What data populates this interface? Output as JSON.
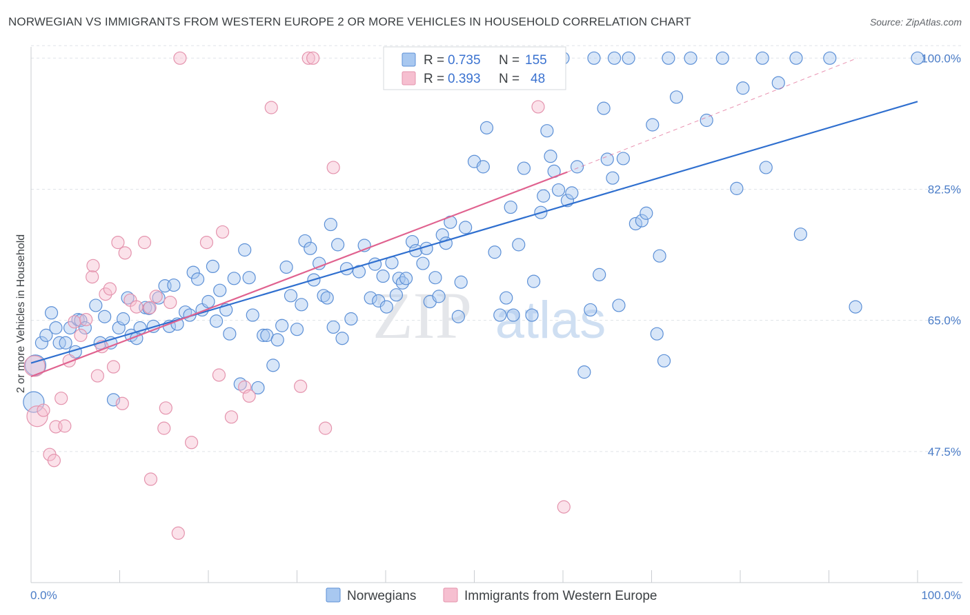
{
  "title": "NORWEGIAN VS IMMIGRANTS FROM WESTERN EUROPE 2 OR MORE VEHICLES IN HOUSEHOLD CORRELATION CHART",
  "source": "Source: ZipAtlas.com",
  "watermark": {
    "zip": "ZIP",
    "atlas": "atlas"
  },
  "colors": {
    "norwegians_fill": "#a8c8f0",
    "norwegians_stroke": "#5b8fd6",
    "norwegians_line": "#2f6fcf",
    "immigrants_fill": "#f6bfd0",
    "immigrants_stroke": "#e493ad",
    "immigrants_line": "#e0628f",
    "grid": "#dfe3e8",
    "tick_label": "#4a7cc7"
  },
  "legend": {
    "r_label": "R =",
    "n_label": "N =",
    "rows": [
      {
        "r": "0.735",
        "n": "155"
      },
      {
        "r": "0.393",
        "n": "48"
      }
    ]
  },
  "chart_data": {
    "type": "scatter",
    "xlabel": "",
    "ylabel": "2 or more Vehicles in Household",
    "xlim": [
      0,
      100
    ],
    "ylim": [
      30,
      101.5
    ],
    "x_tick_labels": [
      "0.0%",
      "100.0%"
    ],
    "y_ticks": [
      47.5,
      65.0,
      82.5,
      100.0
    ],
    "y_tick_labels": [
      "47.5%",
      "65.0%",
      "82.5%",
      "100.0%"
    ],
    "grid": true,
    "legend_position": "top-center",
    "series": [
      {
        "name": "Norwegians",
        "r": 0.735,
        "n": 155,
        "trend": {
          "x": [
            0,
            100
          ],
          "y": [
            59.3,
            94.2
          ]
        },
        "points": [
          [
            0.3,
            54.1
          ],
          [
            0.5,
            59.0
          ],
          [
            1.2,
            62.0
          ],
          [
            1.7,
            63.0
          ],
          [
            2.3,
            66.0
          ],
          [
            2.8,
            64.0
          ],
          [
            3.2,
            62.0
          ],
          [
            3.9,
            62.0
          ],
          [
            4.4,
            64.0
          ],
          [
            5.0,
            60.8
          ],
          [
            5.3,
            65.1
          ],
          [
            5.6,
            65.0
          ],
          [
            6.1,
            64.0
          ],
          [
            7.3,
            67.0
          ],
          [
            7.8,
            62.0
          ],
          [
            8.3,
            65.5
          ],
          [
            9.0,
            62.0
          ],
          [
            9.3,
            54.4
          ],
          [
            9.9,
            64.0
          ],
          [
            10.4,
            65.2
          ],
          [
            10.9,
            68.0
          ],
          [
            11.3,
            63.0
          ],
          [
            11.9,
            62.6
          ],
          [
            12.3,
            64.0
          ],
          [
            12.9,
            66.7
          ],
          [
            13.3,
            66.6
          ],
          [
            13.8,
            64.2
          ],
          [
            14.4,
            68.0
          ],
          [
            15.1,
            69.6
          ],
          [
            15.6,
            64.2
          ],
          [
            16.1,
            69.7
          ],
          [
            16.5,
            64.5
          ],
          [
            17.4,
            66.1
          ],
          [
            17.9,
            65.7
          ],
          [
            18.3,
            71.4
          ],
          [
            18.8,
            70.5
          ],
          [
            19.3,
            66.4
          ],
          [
            20.0,
            67.5
          ],
          [
            20.5,
            72.2
          ],
          [
            20.9,
            64.9
          ],
          [
            21.3,
            69.0
          ],
          [
            22.0,
            66.4
          ],
          [
            22.4,
            63.2
          ],
          [
            22.9,
            70.6
          ],
          [
            23.6,
            56.5
          ],
          [
            24.1,
            74.4
          ],
          [
            24.6,
            70.7
          ],
          [
            25.0,
            65.7
          ],
          [
            25.6,
            56.0
          ],
          [
            26.2,
            63.0
          ],
          [
            26.6,
            63.0
          ],
          [
            27.3,
            59.0
          ],
          [
            27.8,
            62.4
          ],
          [
            28.3,
            64.3
          ],
          [
            28.8,
            72.1
          ],
          [
            29.3,
            68.3
          ],
          [
            30.0,
            63.8
          ],
          [
            30.5,
            67.1
          ],
          [
            30.9,
            75.6
          ],
          [
            31.5,
            74.6
          ],
          [
            31.9,
            70.4
          ],
          [
            32.5,
            72.6
          ],
          [
            33.0,
            68.3
          ],
          [
            33.4,
            68.0
          ],
          [
            33.8,
            77.8
          ],
          [
            34.1,
            64.1
          ],
          [
            34.6,
            75.1
          ],
          [
            35.1,
            62.6
          ],
          [
            35.6,
            71.9
          ],
          [
            36.1,
            65.2
          ],
          [
            37.0,
            71.5
          ],
          [
            37.6,
            75.0
          ],
          [
            38.3,
            68.0
          ],
          [
            38.8,
            72.5
          ],
          [
            39.2,
            67.6
          ],
          [
            39.7,
            70.9
          ],
          [
            40.1,
            66.8
          ],
          [
            40.7,
            72.7
          ],
          [
            41.2,
            68.4
          ],
          [
            41.5,
            70.6
          ],
          [
            41.9,
            70.0
          ],
          [
            42.3,
            70.6
          ],
          [
            43.0,
            75.5
          ],
          [
            43.4,
            74.3
          ],
          [
            44.2,
            72.6
          ],
          [
            44.6,
            74.6
          ],
          [
            45.0,
            67.5
          ],
          [
            45.6,
            70.7
          ],
          [
            46.0,
            68.2
          ],
          [
            46.4,
            76.4
          ],
          [
            46.8,
            75.3
          ],
          [
            47.3,
            78.1
          ],
          [
            48.2,
            65.5
          ],
          [
            48.5,
            70.1
          ],
          [
            49.0,
            77.4
          ],
          [
            50.0,
            86.2
          ],
          [
            51.0,
            85.5
          ],
          [
            51.4,
            90.7
          ],
          [
            52.3,
            74.1
          ],
          [
            52.9,
            65.7
          ],
          [
            53.6,
            68.0
          ],
          [
            54.1,
            80.1
          ],
          [
            54.4,
            65.7
          ],
          [
            55.0,
            75.1
          ],
          [
            55.6,
            85.3
          ],
          [
            56.5,
            65.7
          ],
          [
            56.7,
            70.2
          ],
          [
            57.5,
            79.4
          ],
          [
            57.8,
            81.6
          ],
          [
            58.2,
            90.3
          ],
          [
            58.6,
            86.9
          ],
          [
            59.0,
            84.9
          ],
          [
            59.5,
            82.4
          ],
          [
            60.0,
            100.0
          ],
          [
            60.5,
            81.0
          ],
          [
            61.0,
            82.0
          ],
          [
            61.6,
            85.5
          ],
          [
            62.4,
            58.1
          ],
          [
            63.1,
            66.4
          ],
          [
            63.5,
            100.0
          ],
          [
            64.1,
            71.1
          ],
          [
            64.6,
            93.3
          ],
          [
            65.0,
            86.5
          ],
          [
            65.6,
            84.0
          ],
          [
            65.8,
            100.0
          ],
          [
            66.3,
            67.0
          ],
          [
            66.8,
            86.6
          ],
          [
            67.4,
            100.0
          ],
          [
            68.2,
            77.9
          ],
          [
            68.9,
            78.3
          ],
          [
            69.4,
            79.3
          ],
          [
            70.1,
            91.1
          ],
          [
            70.6,
            63.2
          ],
          [
            70.9,
            73.6
          ],
          [
            71.4,
            59.6
          ],
          [
            71.9,
            100.0
          ],
          [
            72.8,
            94.8
          ],
          [
            74.4,
            100.0
          ],
          [
            76.2,
            91.7
          ],
          [
            78.0,
            100.0
          ],
          [
            79.6,
            82.6
          ],
          [
            80.3,
            96.0
          ],
          [
            82.5,
            100.0
          ],
          [
            82.9,
            85.4
          ],
          [
            84.3,
            96.7
          ],
          [
            86.3,
            100.0
          ],
          [
            86.8,
            76.5
          ],
          [
            90.1,
            100.0
          ],
          [
            93.0,
            66.8
          ],
          [
            100.0,
            100.0
          ]
        ]
      },
      {
        "name": "Immigrants from Western Europe",
        "r": 0.393,
        "n": 48,
        "trend": {
          "x": [
            0,
            60.5
          ],
          "y": [
            57.5,
            84.8
          ]
        },
        "trend_ext": {
          "x": [
            60.5,
            93.2
          ],
          "y": [
            84.8,
            100.0
          ]
        },
        "points": [
          [
            0.4,
            58.9
          ],
          [
            0.7,
            52.2
          ],
          [
            1.4,
            53.0
          ],
          [
            2.1,
            47.1
          ],
          [
            2.6,
            46.3
          ],
          [
            2.8,
            50.8
          ],
          [
            3.4,
            54.6
          ],
          [
            3.8,
            50.9
          ],
          [
            4.3,
            59.6
          ],
          [
            4.9,
            64.8
          ],
          [
            5.6,
            63.0
          ],
          [
            6.2,
            65.1
          ],
          [
            6.9,
            70.8
          ],
          [
            7.0,
            72.3
          ],
          [
            7.5,
            57.6
          ],
          [
            8.0,
            61.5
          ],
          [
            8.4,
            68.5
          ],
          [
            8.9,
            69.2
          ],
          [
            9.3,
            58.8
          ],
          [
            9.8,
            75.4
          ],
          [
            10.3,
            53.9
          ],
          [
            10.6,
            74.0
          ],
          [
            11.2,
            67.7
          ],
          [
            11.9,
            66.8
          ],
          [
            12.8,
            75.4
          ],
          [
            13.4,
            66.7
          ],
          [
            13.5,
            43.8
          ],
          [
            14.1,
            68.2
          ],
          [
            15.0,
            50.6
          ],
          [
            15.2,
            53.3
          ],
          [
            15.7,
            67.4
          ],
          [
            16.6,
            36.6
          ],
          [
            16.8,
            100.0
          ],
          [
            18.1,
            48.7
          ],
          [
            19.8,
            75.4
          ],
          [
            21.2,
            57.7
          ],
          [
            21.6,
            76.8
          ],
          [
            22.6,
            52.1
          ],
          [
            24.1,
            56.1
          ],
          [
            24.6,
            54.9
          ],
          [
            27.1,
            93.4
          ],
          [
            30.4,
            56.2
          ],
          [
            31.3,
            100.0
          ],
          [
            31.8,
            100.0
          ],
          [
            33.2,
            50.6
          ],
          [
            34.1,
            85.4
          ],
          [
            57.2,
            93.5
          ],
          [
            60.1,
            40.1
          ]
        ]
      }
    ]
  },
  "bottom_legend": {
    "norwegians": "Norwegians",
    "immigrants": "Immigrants from Western Europe"
  }
}
